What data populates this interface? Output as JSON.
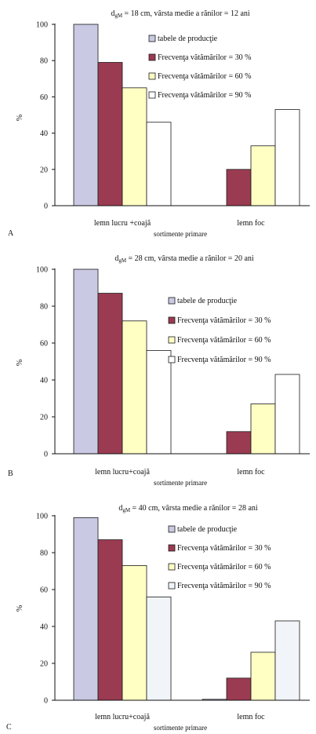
{
  "chart_data": [
    {
      "type": "bar",
      "panel_label": "A",
      "title": {
        "main": "d",
        "sub": "gM",
        "rest": " = 18 cm, vârsta medie a rănilor = 12 ani"
      },
      "xlabel": "sortimente primare",
      "ylabel": "%",
      "ylim": [
        0,
        100
      ],
      "yticks": [
        0,
        20,
        40,
        60,
        80,
        100
      ],
      "grid": false,
      "legend": "upper-right",
      "categories": [
        "lemn lucru +coajă",
        "lemn foc"
      ],
      "series": [
        {
          "name": "tabele de producţie",
          "color": "#c9c9e3",
          "values": [
            100,
            0
          ]
        },
        {
          "name": "Frecvenţa vătămărilor = 30 %",
          "color": "#9b3b52",
          "values": [
            79,
            20
          ]
        },
        {
          "name": "Frecvenţa vătămărilor = 60 %",
          "color": "#ffffc4",
          "values": [
            65,
            33
          ]
        },
        {
          "name": "Frecvenţa vătămărilor = 90 %",
          "color": "#ffffff",
          "values": [
            46,
            53
          ]
        }
      ]
    },
    {
      "type": "bar",
      "panel_label": "B",
      "title": {
        "main": "d",
        "sub": "gM",
        "rest": " = 28 cm, vârsta medie a rănilor = 20 ani"
      },
      "xlabel": "sortimente primare",
      "ylabel": "%",
      "ylim": [
        0,
        100
      ],
      "yticks": [
        0,
        20,
        40,
        60,
        80,
        100
      ],
      "grid": false,
      "legend": "upper-right",
      "categories": [
        "lemn lucru+coajă",
        "lemn foc"
      ],
      "series": [
        {
          "name": "tabele de producţie",
          "color": "#c9c9e3",
          "values": [
            100,
            0
          ]
        },
        {
          "name": "Frecvenţa vătămărilor = 30 %",
          "color": "#9b3b52",
          "values": [
            87,
            12
          ]
        },
        {
          "name": "Frecvenţa vătămărilor = 60 %",
          "color": "#ffffc4",
          "values": [
            72,
            27
          ]
        },
        {
          "name": "Frecvenţa vătămărilor = 90 %",
          "color": "#ffffff",
          "values": [
            56,
            43
          ]
        }
      ]
    },
    {
      "type": "bar",
      "panel_label": "C",
      "title": {
        "main": "d",
        "sub": "gM",
        "rest": " = 40 cm, vârsta medie a rănilor = 28 ani"
      },
      "xlabel": "sortimente primare",
      "ylabel": "%",
      "ylim": [
        0,
        100
      ],
      "yticks": [
        0,
        20,
        40,
        60,
        80,
        100
      ],
      "grid": false,
      "legend": "upper-right",
      "categories": [
        "lemn lucru+coajă",
        "lemn foc"
      ],
      "series": [
        {
          "name": "tabele de producţie",
          "color": "#c9c9e3",
          "values": [
            99,
            0.5
          ]
        },
        {
          "name": "Frecvenţa vătămărilor = 30 %",
          "color": "#9b3b52",
          "values": [
            87,
            12
          ]
        },
        {
          "name": "Frecvenţa vătămărilor = 60 %",
          "color": "#ffffc4",
          "values": [
            73,
            26
          ]
        },
        {
          "name": "Frecvenţa vătămărilor = 90 %",
          "color": "#f1f5fa",
          "values": [
            56,
            43
          ]
        }
      ]
    }
  ]
}
